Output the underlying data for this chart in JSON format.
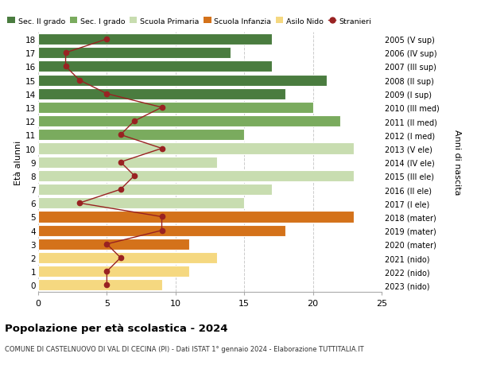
{
  "ages": [
    18,
    17,
    16,
    15,
    14,
    13,
    12,
    11,
    10,
    9,
    8,
    7,
    6,
    5,
    4,
    3,
    2,
    1,
    0
  ],
  "years": [
    "2005 (V sup)",
    "2006 (IV sup)",
    "2007 (III sup)",
    "2008 (II sup)",
    "2009 (I sup)",
    "2010 (III med)",
    "2011 (II med)",
    "2012 (I med)",
    "2013 (V ele)",
    "2014 (IV ele)",
    "2015 (III ele)",
    "2016 (II ele)",
    "2017 (I ele)",
    "2018 (mater)",
    "2019 (mater)",
    "2020 (mater)",
    "2021 (nido)",
    "2022 (nido)",
    "2023 (nido)"
  ],
  "bar_values": [
    17,
    14,
    17,
    21,
    18,
    20,
    22,
    15,
    23,
    13,
    23,
    17,
    15,
    23,
    18,
    11,
    13,
    11,
    9
  ],
  "stranieri": [
    5,
    2,
    2,
    3,
    5,
    9,
    7,
    6,
    9,
    6,
    7,
    6,
    3,
    9,
    9,
    5,
    6,
    5,
    5
  ],
  "bar_colors": [
    "#4a7c3f",
    "#4a7c3f",
    "#4a7c3f",
    "#4a7c3f",
    "#4a7c3f",
    "#7aab5e",
    "#7aab5e",
    "#7aab5e",
    "#c8ddb0",
    "#c8ddb0",
    "#c8ddb0",
    "#c8ddb0",
    "#c8ddb0",
    "#d4721a",
    "#d4721a",
    "#d4721a",
    "#f5d880",
    "#f5d880",
    "#f5d880"
  ],
  "legend_labels": [
    "Sec. II grado",
    "Sec. I grado",
    "Scuola Primaria",
    "Scuola Infanzia",
    "Asilo Nido",
    "Stranieri"
  ],
  "legend_colors": [
    "#4a7c3f",
    "#7aab5e",
    "#c8ddb0",
    "#d4721a",
    "#f5d880",
    "#992222"
  ],
  "stranieri_color": "#992222",
  "title": "Popolazione per età scolastica - 2024",
  "subtitle": "COMUNE DI CASTELNUOVO DI VAL DI CECINA (PI) - Dati ISTAT 1° gennaio 2024 - Elaborazione TUTTITALIA.IT",
  "ylabel_left": "Età alunni",
  "ylabel_right": "Anni di nascita",
  "xlim": [
    0,
    25
  ],
  "bg_color": "#ffffff",
  "plot_bg_color": "#ffffff",
  "grid_color": "#cccccc",
  "bar_height": 0.82
}
